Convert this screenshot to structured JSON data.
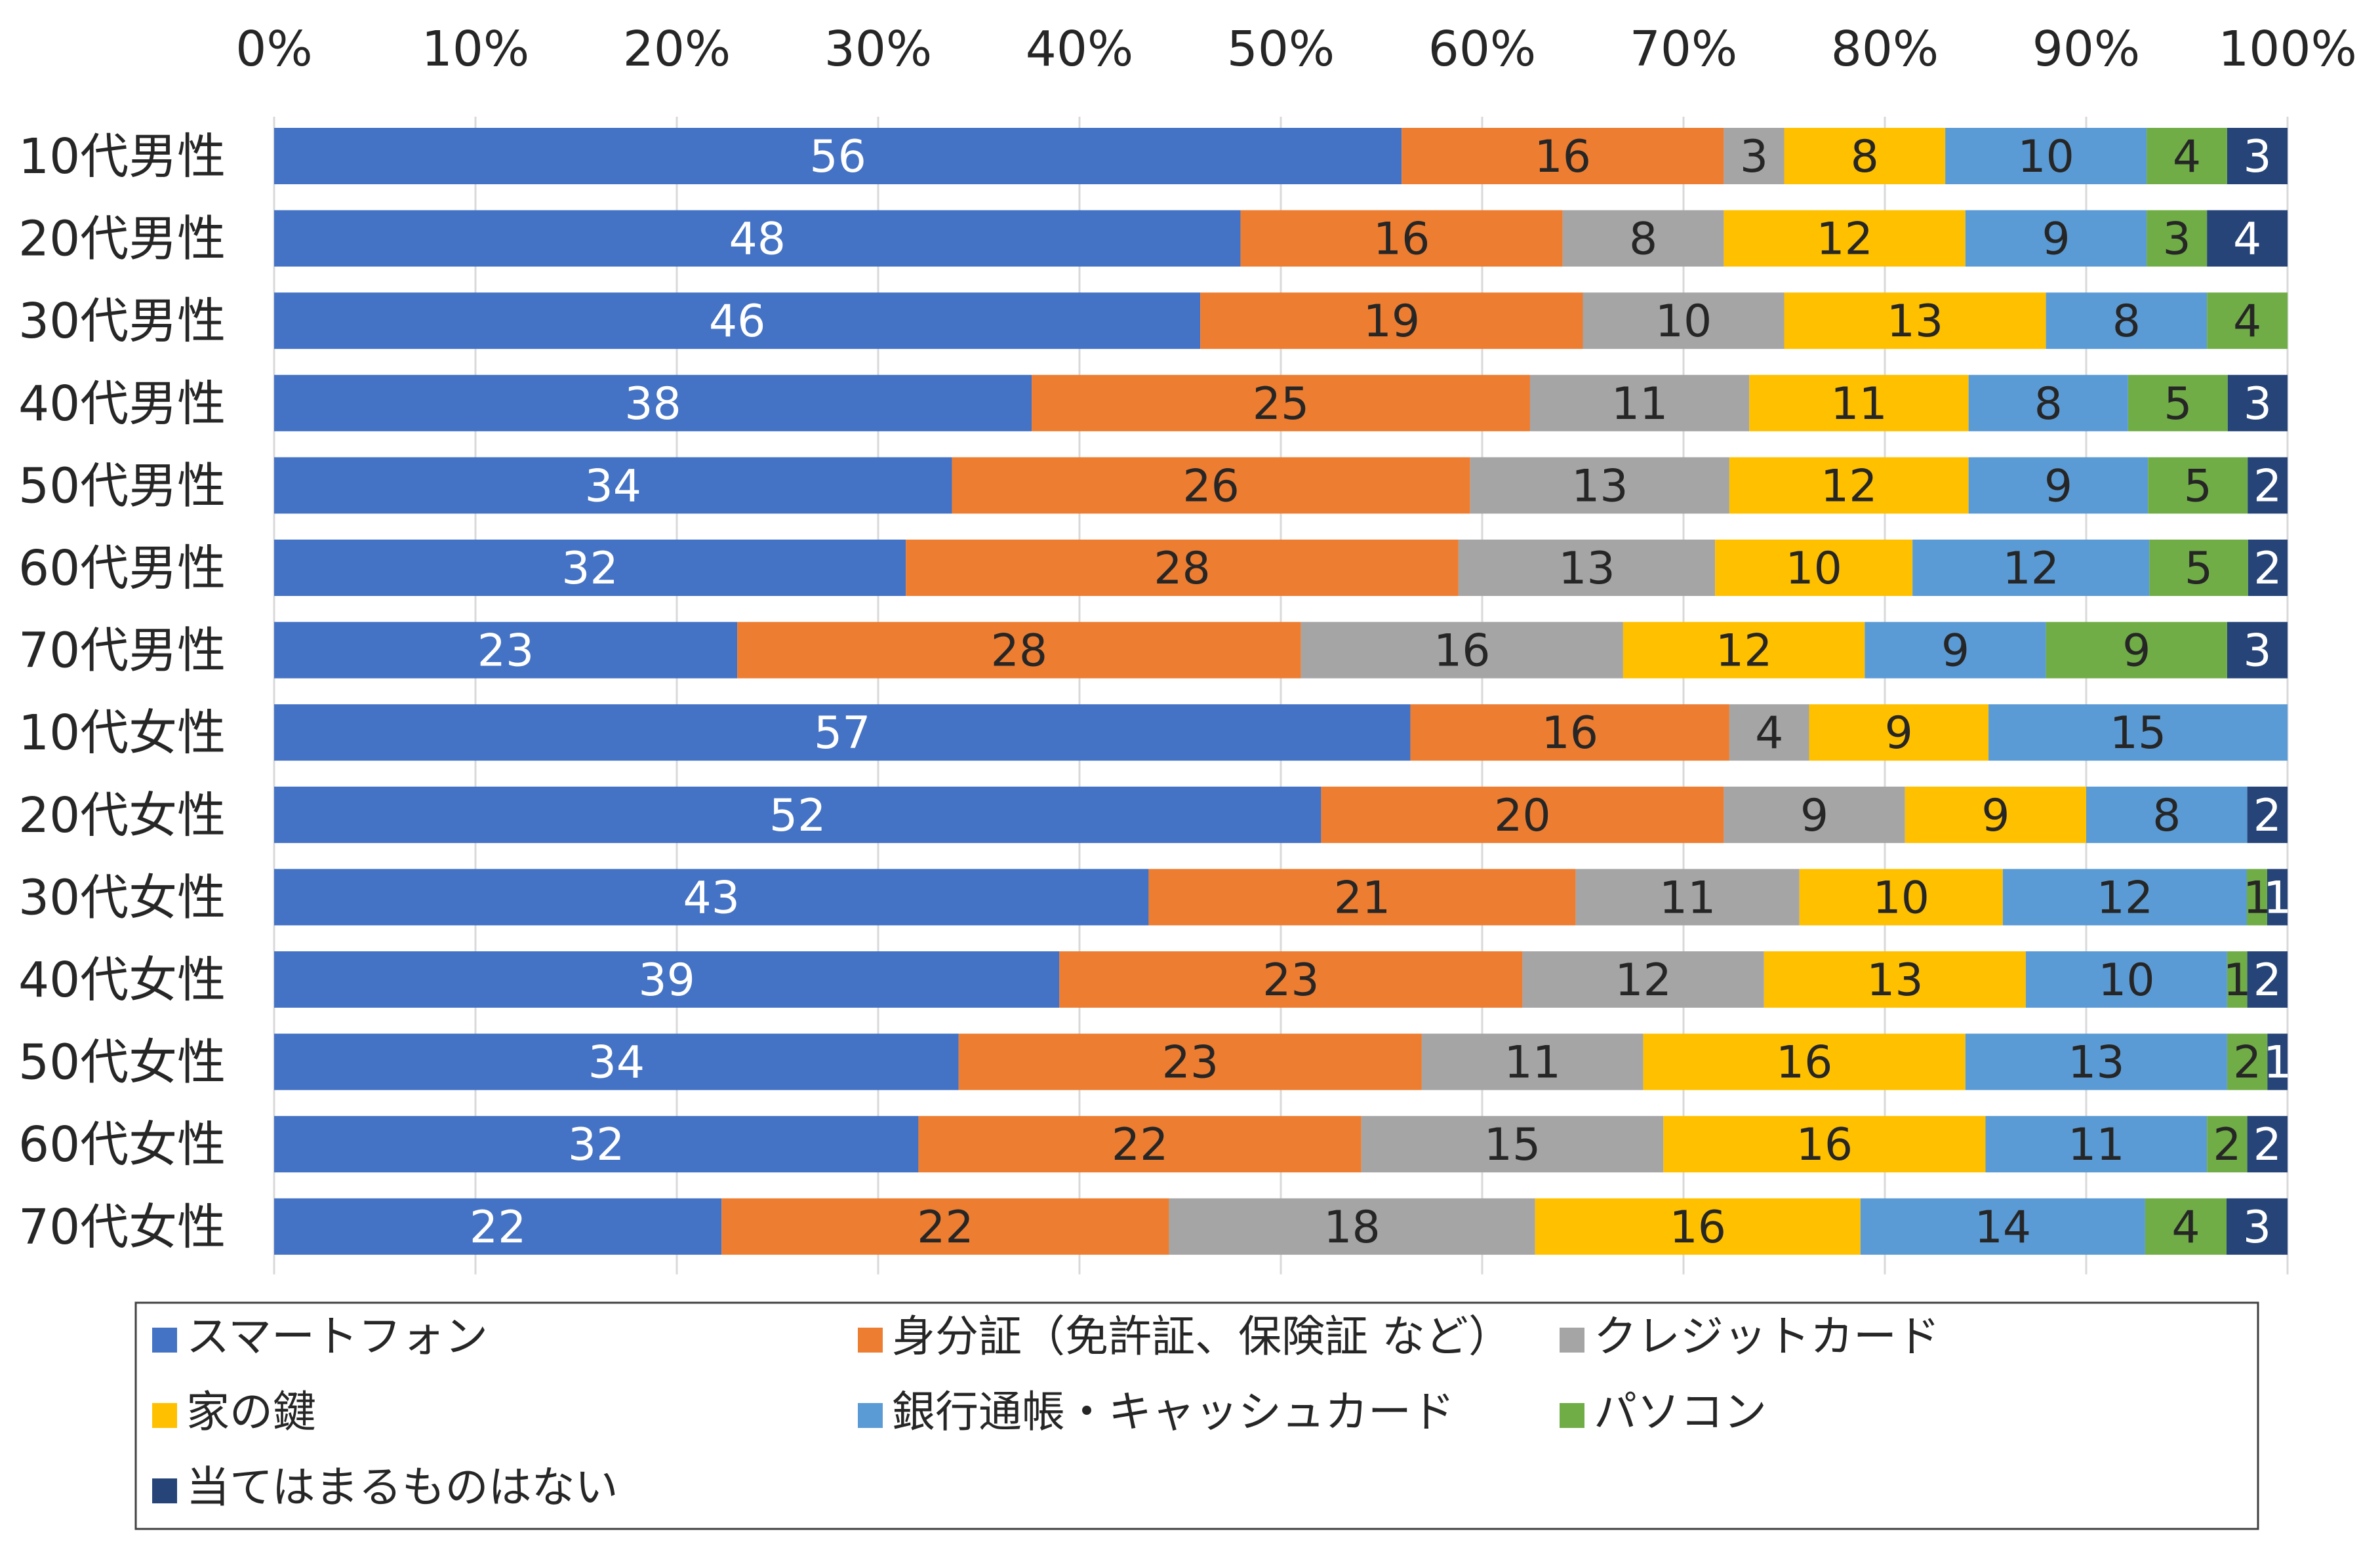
{
  "chart_data": {
    "type": "bar",
    "orientation": "horizontal",
    "stacked": "percent",
    "categories": [
      "10代男性",
      "20代男性",
      "30代男性",
      "40代男性",
      "50代男性",
      "60代男性",
      "70代男性",
      "10代女性",
      "20代女性",
      "30代女性",
      "40代女性",
      "50代女性",
      "60代女性",
      "70代女性"
    ],
    "x_ticks": [
      "0%",
      "10%",
      "20%",
      "30%",
      "40%",
      "50%",
      "60%",
      "70%",
      "80%",
      "90%",
      "100%"
    ],
    "xlim": [
      0,
      100
    ],
    "grid": "vertical",
    "legend_position": "bottom",
    "series": [
      {
        "name": "スマートフォン",
        "color": "#4472C4",
        "label_color": "#ffffff",
        "values": [
          56,
          48,
          46,
          38,
          34,
          32,
          23,
          57,
          52,
          43,
          39,
          34,
          32,
          22
        ]
      },
      {
        "name": "身分証（免許証、保険証 など）",
        "color": "#ED7D31",
        "label_color": "#262626",
        "values": [
          16,
          16,
          19,
          25,
          26,
          28,
          28,
          16,
          20,
          21,
          23,
          23,
          22,
          22
        ]
      },
      {
        "name": "クレジットカード",
        "color": "#A5A5A5",
        "label_color": "#262626",
        "values": [
          3,
          8,
          10,
          11,
          13,
          13,
          16,
          4,
          9,
          11,
          12,
          11,
          15,
          18
        ]
      },
      {
        "name": "家の鍵",
        "color": "#FFC000",
        "label_color": "#262626",
        "values": [
          8,
          12,
          13,
          11,
          12,
          10,
          12,
          9,
          9,
          10,
          13,
          16,
          16,
          16
        ]
      },
      {
        "name": "銀行通帳・キャッシュカード",
        "color": "#5B9BD5",
        "label_color": "#262626",
        "values": [
          10,
          9,
          8,
          8,
          9,
          12,
          9,
          15,
          8,
          12,
          10,
          13,
          11,
          14
        ]
      },
      {
        "name": "パソコン",
        "color": "#70AD47",
        "label_color": "#262626",
        "values": [
          4,
          3,
          4,
          5,
          5,
          5,
          9,
          0,
          0,
          1,
          1,
          2,
          2,
          4
        ]
      },
      {
        "name": "当てはまるものはない",
        "color": "#264478",
        "label_color": "#ffffff",
        "values": [
          3,
          4,
          0,
          3,
          2,
          2,
          3,
          0,
          2,
          1,
          2,
          1,
          2,
          3
        ]
      }
    ]
  }
}
